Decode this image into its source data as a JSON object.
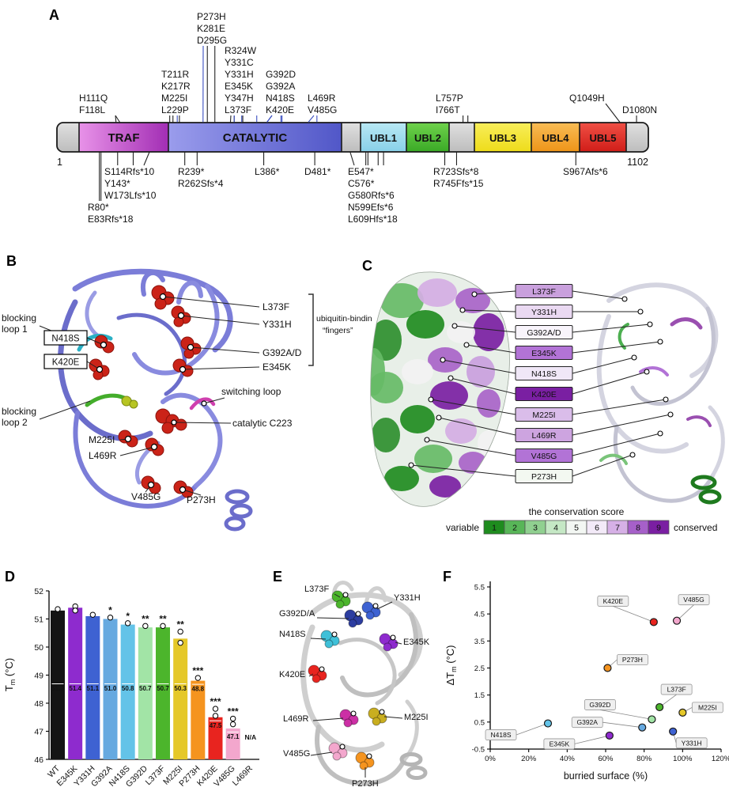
{
  "panels": {
    "a": "A",
    "b": "B",
    "c": "C",
    "d": "D",
    "e": "E",
    "f": "F"
  },
  "panel_a": {
    "scale_start": "1",
    "scale_end": "1102",
    "missense_color": "#3a4ec0",
    "domains": [
      {
        "id": "cap-left",
        "label": ""
      },
      {
        "id": "traf",
        "label": "TRAF"
      },
      {
        "id": "catalytic",
        "label": "CATALYTIC"
      },
      {
        "id": "linker1",
        "label": ""
      },
      {
        "id": "ubl1",
        "label": "UBL1"
      },
      {
        "id": "ubl2",
        "label": "UBL2"
      },
      {
        "id": "linker2",
        "label": ""
      },
      {
        "id": "ubl3",
        "label": "UBL3"
      },
      {
        "id": "ubl4",
        "label": "UBL4"
      },
      {
        "id": "ubl5",
        "label": "UBL5"
      },
      {
        "id": "cap-right",
        "label": ""
      }
    ],
    "mutations_above": [
      {
        "labels": [
          "H111Q",
          "F118L"
        ]
      },
      {
        "labels": [
          "T211R",
          "K217R",
          "M225I",
          "L229P"
        ]
      },
      {
        "labels": [
          "P273H",
          "K281E",
          "D295G"
        ]
      },
      {
        "labels": [
          "R324W",
          "Y331C",
          "Y331H",
          "E345K",
          "Y347H",
          "L373F"
        ]
      },
      {
        "labels": [
          "G392D",
          "G392A",
          "N418S",
          "K420E"
        ]
      },
      {
        "labels": [
          "L469R",
          "V485G"
        ]
      },
      {
        "labels": [
          "L757P",
          "I766T"
        ]
      },
      {
        "labels": [
          "Q1049H"
        ]
      },
      {
        "labels": [
          "D1080N"
        ]
      }
    ],
    "studied_missense": [
      "M225I",
      "P273H",
      "Y331H",
      "E345K",
      "L373F",
      "G392D",
      "G392A",
      "N418S",
      "K420E",
      "L469R",
      "V485G"
    ],
    "mutations_below": [
      {
        "labels": [
          "R80*",
          "E83Rfs*18"
        ]
      },
      {
        "labels": [
          "S114Rfs*10",
          "Y143*",
          "W173Lfs*10"
        ]
      },
      {
        "labels": [
          "R239*",
          "R262Sfs*4"
        ]
      },
      {
        "labels": [
          "L386*"
        ]
      },
      {
        "labels": [
          "D481*"
        ]
      },
      {
        "labels": [
          "E547*",
          "C576*",
          "G580Rfs*6",
          "N599Efs*6",
          "L609Hfs*18"
        ]
      },
      {
        "labels": [
          "R723Sfs*8",
          "R745Ffs*15"
        ]
      },
      {
        "labels": [
          "S967Afs*6"
        ]
      }
    ]
  },
  "panel_b": {
    "site_labels": [
      "L373F",
      "Y331H",
      "G392A/D",
      "E345K",
      "N418S",
      "K420E",
      "M225I",
      "L469R",
      "V485G",
      "P273H"
    ],
    "sphere_color": "#cb2318",
    "annotations": {
      "blocking_loop_1": {
        "line1": "blocking",
        "line2": "loop 1",
        "color": "#2ab0c5"
      },
      "blocking_loop_2": {
        "line1": "blocking",
        "line2": "loop 2",
        "color": "#44ad2b"
      },
      "switching_loop": {
        "text": "switching loop",
        "color": "#cf3fae"
      },
      "catalytic": {
        "text": "catalytic C223",
        "color": "#3a3ab8"
      },
      "fingers": {
        "line1": "ubiquitin-binding",
        "line2": "“fingers”",
        "color": "#4a4ab8"
      }
    }
  },
  "panel_c": {
    "labels": [
      {
        "text": "L373F",
        "fill": "#c9a0dd",
        "tc": "#000"
      },
      {
        "text": "Y331H",
        "fill": "#ead9f2",
        "tc": "#000"
      },
      {
        "text": "G392A/D",
        "fill": "#f8f4fb",
        "tc": "#000"
      },
      {
        "text": "E345K",
        "fill": "#b273d6",
        "tc": "#000"
      },
      {
        "text": "N418S",
        "fill": "#f0e7f7",
        "tc": "#000"
      },
      {
        "text": "K420E",
        "fill": "#7a1fa2",
        "tc": "#fff"
      },
      {
        "text": "M225I",
        "fill": "#dabdea",
        "tc": "#000"
      },
      {
        "text": "L469R",
        "fill": "#cda4e0",
        "tc": "#000"
      },
      {
        "text": "V485G",
        "fill": "#b273d6",
        "tc": "#000"
      },
      {
        "text": "P273H",
        "fill": "#f3f8f1",
        "tc": "#000"
      }
    ],
    "scale": {
      "title": "the conservation score",
      "left": "variable",
      "right": "conserved",
      "cells": [
        {
          "n": "1",
          "color": "#1e8c1e",
          "tc": "#fff"
        },
        {
          "n": "2",
          "color": "#58b658",
          "tc": "#000"
        },
        {
          "n": "3",
          "color": "#90d090",
          "tc": "#000"
        },
        {
          "n": "4",
          "color": "#c5e8c5",
          "tc": "#000"
        },
        {
          "n": "5",
          "color": "#f3f7f3",
          "tc": "#000"
        },
        {
          "n": "6",
          "color": "#f3eaf8",
          "tc": "#000"
        },
        {
          "n": "7",
          "color": "#d6b0e6",
          "tc": "#000"
        },
        {
          "n": "8",
          "color": "#a660c9",
          "tc": "#fff"
        },
        {
          "n": "9",
          "color": "#7a1fa2",
          "tc": "#fff"
        }
      ]
    }
  },
  "panel_e": {
    "sites": [
      {
        "name": "L373F",
        "color": "#4cb52c"
      },
      {
        "name": "Y331H",
        "color": "#3e62d2"
      },
      {
        "name": "G392D/A",
        "color": "#2c3da0"
      },
      {
        "name": "N418S",
        "color": "#3fc0d8"
      },
      {
        "name": "E345K",
        "color": "#8e2bce"
      },
      {
        "name": "K420E",
        "color": "#e8241f"
      },
      {
        "name": "M225I",
        "color": "#c9ae20"
      },
      {
        "name": "L469R",
        "color": "#cc2fa5"
      },
      {
        "name": "V485G",
        "color": "#f3a7cd"
      },
      {
        "name": "P273H",
        "color": "#f5941f"
      }
    ]
  },
  "chart_data": [
    {
      "id": "panel_d",
      "type": "bar",
      "ylabel": "Tm (°C)",
      "ylim": [
        46,
        52
      ],
      "yticks": [
        46,
        47,
        48,
        49,
        50,
        51,
        52
      ],
      "categories": [
        "WT",
        "E345K",
        "Y331H",
        "G392A",
        "N418S",
        "G392D",
        "L373F",
        "M225I",
        "P273H",
        "K420E",
        "V485G",
        "L469R"
      ],
      "values": [
        51.3,
        51.4,
        51.1,
        51.0,
        50.8,
        50.7,
        50.7,
        50.3,
        48.8,
        47.5,
        47.1,
        null
      ],
      "value_labels": [
        "51.3",
        "51.4",
        "51.1",
        "51.0",
        "50.8",
        "50.7",
        "50.7",
        "50.3",
        "48.8",
        "47.5",
        "47.1",
        "N/A"
      ],
      "significance": [
        "",
        "",
        "",
        "*",
        "*",
        "**",
        "**",
        "**",
        "***",
        "***",
        "***",
        ""
      ],
      "points": [
        [
          51.35
        ],
        [
          51.45,
          51.3
        ],
        [
          51.15
        ],
        [
          51.05
        ],
        [
          50.85
        ],
        [
          50.75
        ],
        [
          50.75
        ],
        [
          50.55,
          50.15
        ],
        [
          48.9
        ],
        [
          47.8,
          47.55
        ],
        [
          47.45,
          47.25
        ],
        []
      ],
      "colors": [
        "#141414",
        "#8e2bce",
        "#3e62d2",
        "#66a9e0",
        "#63c3e8",
        "#a2e4a6",
        "#4cb52c",
        "#e5c829",
        "#f5941f",
        "#e8241f",
        "#f3a7cd",
        "#cccccc"
      ],
      "grid": false,
      "legend": false
    },
    {
      "id": "panel_f",
      "type": "scatter",
      "xlabel": "burried surface (%)",
      "ylabel": "ΔTm (°C)",
      "xlim": [
        0,
        120
      ],
      "ylim": [
        -0.5,
        5.5
      ],
      "xticks": [
        "0%",
        "20%",
        "40%",
        "60%",
        "80%",
        "100%",
        "120%"
      ],
      "yticks": [
        -0.5,
        0.5,
        1.5,
        2.5,
        3.5,
        4.5,
        5.5
      ],
      "points": [
        {
          "name": "N418S",
          "x": 30,
          "y": 0.45,
          "color": "#63c3e8"
        },
        {
          "name": "E345K",
          "x": 62,
          "y": 0.0,
          "color": "#8e2bce"
        },
        {
          "name": "P273H",
          "x": 61,
          "y": 2.5,
          "color": "#f5941f"
        },
        {
          "name": "G392A",
          "x": 79,
          "y": 0.3,
          "color": "#66a9e0"
        },
        {
          "name": "G392D",
          "x": 84,
          "y": 0.6,
          "color": "#a2e4a6"
        },
        {
          "name": "K420E",
          "x": 85,
          "y": 4.2,
          "color": "#e8241f"
        },
        {
          "name": "L373F",
          "x": 88,
          "y": 1.05,
          "color": "#4cb52c"
        },
        {
          "name": "Y331H",
          "x": 95,
          "y": 0.15,
          "color": "#3e62d2"
        },
        {
          "name": "V485G",
          "x": 97,
          "y": 4.25,
          "color": "#f3a7cd"
        },
        {
          "name": "M225I",
          "x": 100,
          "y": 0.85,
          "color": "#e5c829"
        }
      ],
      "grid": false,
      "legend": false
    }
  ]
}
